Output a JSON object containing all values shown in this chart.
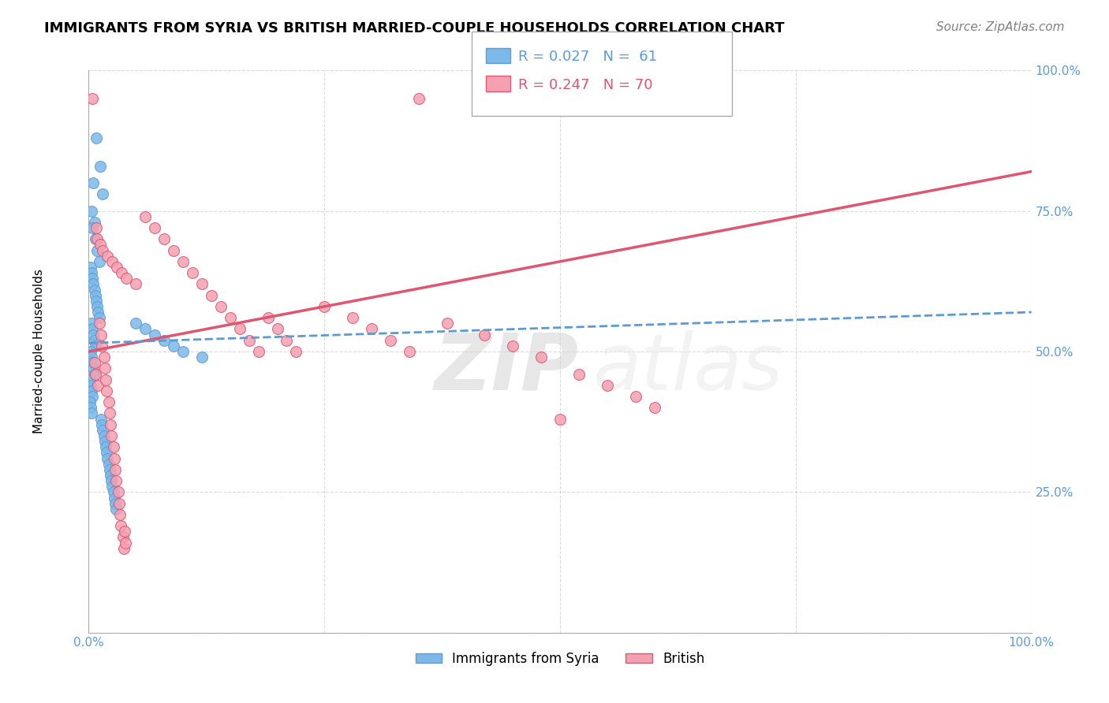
{
  "title": "IMMIGRANTS FROM SYRIA VS BRITISH MARRIED-COUPLE HOUSEHOLDS CORRELATION CHART",
  "source": "Source: ZipAtlas.com",
  "xlabel": "Immigrants from Syria",
  "ylabel": "Married-couple Households",
  "xlim": [
    0.0,
    1.0
  ],
  "ylim": [
    0.0,
    1.0
  ],
  "legend_r1": "R = 0.027",
  "legend_n1": "N =  61",
  "legend_r2": "R = 0.247",
  "legend_n2": "N = 70",
  "blue_color": "#7CB9E8",
  "pink_color": "#F4A0B0",
  "trend_blue_color": "#5B9BD5",
  "trend_pink_color": "#E05570",
  "watermark_zip": "ZIP",
  "watermark_atlas": "atlas",
  "blue_scatter_x": [
    0.008,
    0.012,
    0.005,
    0.015,
    0.003,
    0.006,
    0.004,
    0.007,
    0.009,
    0.011,
    0.002,
    0.003,
    0.004,
    0.005,
    0.006,
    0.007,
    0.008,
    0.009,
    0.01,
    0.011,
    0.003,
    0.004,
    0.005,
    0.006,
    0.007,
    0.002,
    0.003,
    0.004,
    0.005,
    0.006,
    0.001,
    0.002,
    0.003,
    0.004,
    0.001,
    0.002,
    0.003,
    0.05,
    0.06,
    0.07,
    0.08,
    0.09,
    0.1,
    0.12,
    0.013,
    0.014,
    0.015,
    0.016,
    0.017,
    0.018,
    0.019,
    0.02,
    0.021,
    0.022,
    0.023,
    0.024,
    0.025,
    0.026,
    0.027,
    0.028,
    0.029
  ],
  "blue_scatter_y": [
    0.88,
    0.83,
    0.8,
    0.78,
    0.75,
    0.73,
    0.72,
    0.7,
    0.68,
    0.66,
    0.65,
    0.64,
    0.63,
    0.62,
    0.61,
    0.6,
    0.59,
    0.58,
    0.57,
    0.56,
    0.55,
    0.54,
    0.53,
    0.52,
    0.51,
    0.5,
    0.49,
    0.48,
    0.47,
    0.46,
    0.45,
    0.44,
    0.43,
    0.42,
    0.41,
    0.4,
    0.39,
    0.55,
    0.54,
    0.53,
    0.52,
    0.51,
    0.5,
    0.49,
    0.38,
    0.37,
    0.36,
    0.35,
    0.34,
    0.33,
    0.32,
    0.31,
    0.3,
    0.29,
    0.28,
    0.27,
    0.26,
    0.25,
    0.24,
    0.23,
    0.22
  ],
  "pink_scatter_x": [
    0.004,
    0.35,
    0.6,
    0.008,
    0.009,
    0.012,
    0.015,
    0.02,
    0.025,
    0.03,
    0.035,
    0.04,
    0.05,
    0.06,
    0.07,
    0.08,
    0.09,
    0.1,
    0.11,
    0.12,
    0.13,
    0.14,
    0.15,
    0.16,
    0.17,
    0.18,
    0.19,
    0.2,
    0.21,
    0.22,
    0.25,
    0.28,
    0.3,
    0.32,
    0.34,
    0.38,
    0.42,
    0.45,
    0.48,
    0.5,
    0.52,
    0.55,
    0.58,
    0.6,
    0.006,
    0.007,
    0.01,
    0.011,
    0.013,
    0.014,
    0.016,
    0.017,
    0.018,
    0.019,
    0.021,
    0.022,
    0.023,
    0.024,
    0.026,
    0.027,
    0.028,
    0.029,
    0.031,
    0.032,
    0.033,
    0.034,
    0.036,
    0.037,
    0.038,
    0.039
  ],
  "pink_scatter_y": [
    0.95,
    0.95,
    0.93,
    0.72,
    0.7,
    0.69,
    0.68,
    0.67,
    0.66,
    0.65,
    0.64,
    0.63,
    0.62,
    0.74,
    0.72,
    0.7,
    0.68,
    0.66,
    0.64,
    0.62,
    0.6,
    0.58,
    0.56,
    0.54,
    0.52,
    0.5,
    0.56,
    0.54,
    0.52,
    0.5,
    0.58,
    0.56,
    0.54,
    0.52,
    0.5,
    0.55,
    0.53,
    0.51,
    0.49,
    0.38,
    0.46,
    0.44,
    0.42,
    0.4,
    0.48,
    0.46,
    0.44,
    0.55,
    0.53,
    0.51,
    0.49,
    0.47,
    0.45,
    0.43,
    0.41,
    0.39,
    0.37,
    0.35,
    0.33,
    0.31,
    0.29,
    0.27,
    0.25,
    0.23,
    0.21,
    0.19,
    0.17,
    0.15,
    0.18,
    0.16
  ],
  "blue_trend_x": [
    0.0,
    1.0
  ],
  "blue_trend_y_start": 0.515,
  "blue_trend_y_end": 0.57,
  "pink_trend_x": [
    0.0,
    1.0
  ],
  "pink_trend_y_start": 0.5,
  "pink_trend_y_end": 0.82,
  "background_color": "#ffffff",
  "grid_color": "#cccccc",
  "title_fontsize": 13,
  "axis_label_fontsize": 11,
  "tick_fontsize": 11,
  "legend_fontsize": 13,
  "source_fontsize": 11,
  "marker_size": 100
}
